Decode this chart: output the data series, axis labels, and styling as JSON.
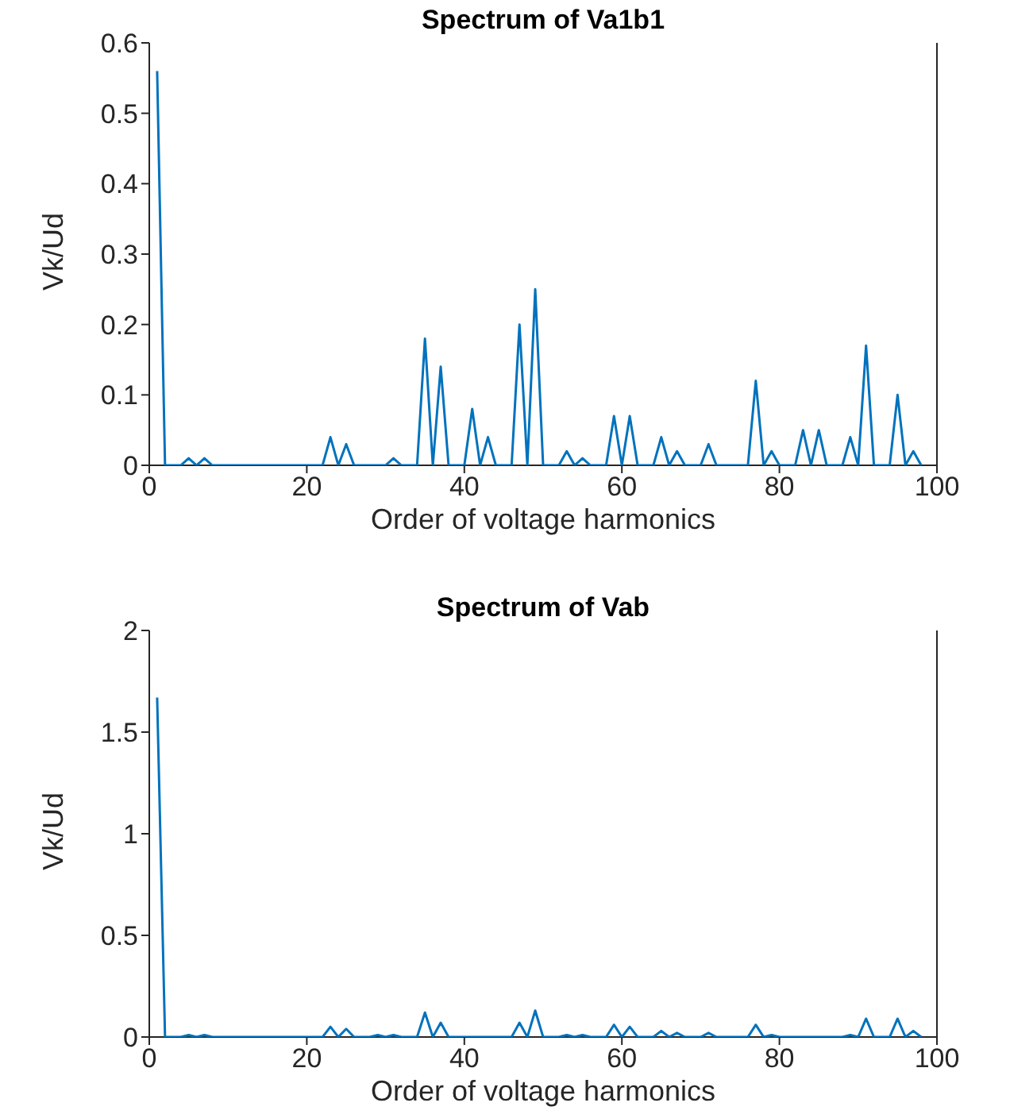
{
  "chart_data": [
    {
      "type": "line",
      "title": "Spectrum of Va1b1",
      "xlabel": "Order of voltage harmonics",
      "ylabel": "Vk/Ud",
      "color": "#0072bd",
      "x": [
        1,
        2,
        3,
        4,
        5,
        6,
        7,
        8,
        9,
        10,
        11,
        12,
        13,
        14,
        15,
        16,
        17,
        18,
        19,
        20,
        21,
        22,
        23,
        24,
        25,
        26,
        27,
        28,
        29,
        30,
        31,
        32,
        33,
        34,
        35,
        36,
        37,
        38,
        39,
        40,
        41,
        42,
        43,
        44,
        45,
        46,
        47,
        48,
        49,
        50,
        51,
        52,
        53,
        54,
        55,
        56,
        57,
        58,
        59,
        60,
        61,
        62,
        63,
        64,
        65,
        66,
        67,
        68,
        69,
        70,
        71,
        72,
        73,
        74,
        75,
        76,
        77,
        78,
        79,
        80,
        81,
        82,
        83,
        84,
        85,
        86,
        87,
        88,
        89,
        90,
        91,
        92,
        93,
        94,
        95,
        96,
        97,
        98
      ],
      "values": [
        0.56,
        0,
        0,
        0,
        0.01,
        0,
        0.01,
        0,
        0,
        0,
        0,
        0,
        0,
        0,
        0,
        0,
        0,
        0,
        0,
        0,
        0,
        0,
        0.04,
        0,
        0.03,
        0,
        0,
        0,
        0,
        0,
        0.01,
        0,
        0,
        0,
        0.18,
        0,
        0.14,
        0,
        0,
        0,
        0.08,
        0,
        0.04,
        0,
        0,
        0,
        0.2,
        0,
        0.25,
        0,
        0,
        0,
        0.02,
        0,
        0.01,
        0,
        0,
        0,
        0.07,
        0,
        0.07,
        0,
        0,
        0,
        0.04,
        0,
        0.02,
        0,
        0,
        0,
        0.03,
        0,
        0,
        0,
        0,
        0,
        0.12,
        0,
        0.02,
        0,
        0,
        0,
        0.05,
        0,
        0.05,
        0,
        0,
        0,
        0.04,
        0,
        0.17,
        0,
        0,
        0,
        0.1,
        0,
        0.02,
        0
      ],
      "xlim": [
        0,
        100
      ],
      "xticks": [
        0,
        20,
        40,
        60,
        80,
        100
      ],
      "ylim": [
        0,
        0.6
      ],
      "yticks": [
        0,
        0.1,
        0.2,
        0.3,
        0.4,
        0.5,
        0.6
      ]
    },
    {
      "type": "line",
      "title": "Spectrum of Vab",
      "xlabel": "Order of voltage harmonics",
      "ylabel": "Vk/Ud",
      "color": "#0072bd",
      "x": [
        1,
        2,
        3,
        4,
        5,
        6,
        7,
        8,
        9,
        10,
        11,
        12,
        13,
        14,
        15,
        16,
        17,
        18,
        19,
        20,
        21,
        22,
        23,
        24,
        25,
        26,
        27,
        28,
        29,
        30,
        31,
        32,
        33,
        34,
        35,
        36,
        37,
        38,
        39,
        40,
        41,
        42,
        43,
        44,
        45,
        46,
        47,
        48,
        49,
        50,
        51,
        52,
        53,
        54,
        55,
        56,
        57,
        58,
        59,
        60,
        61,
        62,
        63,
        64,
        65,
        66,
        67,
        68,
        69,
        70,
        71,
        72,
        73,
        74,
        75,
        76,
        77,
        78,
        79,
        80,
        81,
        82,
        83,
        84,
        85,
        86,
        87,
        88,
        89,
        90,
        91,
        92,
        93,
        94,
        95,
        96,
        97,
        98
      ],
      "values": [
        1.67,
        0,
        0,
        0,
        0.01,
        0,
        0.01,
        0,
        0,
        0,
        0,
        0,
        0,
        0,
        0,
        0,
        0,
        0,
        0,
        0,
        0,
        0,
        0.05,
        0,
        0.04,
        0,
        0,
        0,
        0.01,
        0,
        0.01,
        0,
        0,
        0,
        0.12,
        0,
        0.07,
        0,
        0,
        0,
        0,
        0,
        0,
        0,
        0,
        0,
        0.07,
        0,
        0.13,
        0,
        0,
        0,
        0.01,
        0,
        0.01,
        0,
        0,
        0,
        0.06,
        0,
        0.05,
        0,
        0,
        0,
        0.03,
        0,
        0.02,
        0,
        0,
        0,
        0.02,
        0,
        0,
        0,
        0,
        0,
        0.06,
        0,
        0.01,
        0,
        0,
        0,
        0,
        0,
        0,
        0,
        0,
        0,
        0.01,
        0,
        0.09,
        0,
        0,
        0,
        0.09,
        0,
        0.03,
        0
      ],
      "xlim": [
        0,
        100
      ],
      "xticks": [
        0,
        20,
        40,
        60,
        80,
        100
      ],
      "ylim": [
        0,
        2
      ],
      "yticks": [
        0,
        0.5,
        1,
        1.5,
        2
      ]
    }
  ]
}
